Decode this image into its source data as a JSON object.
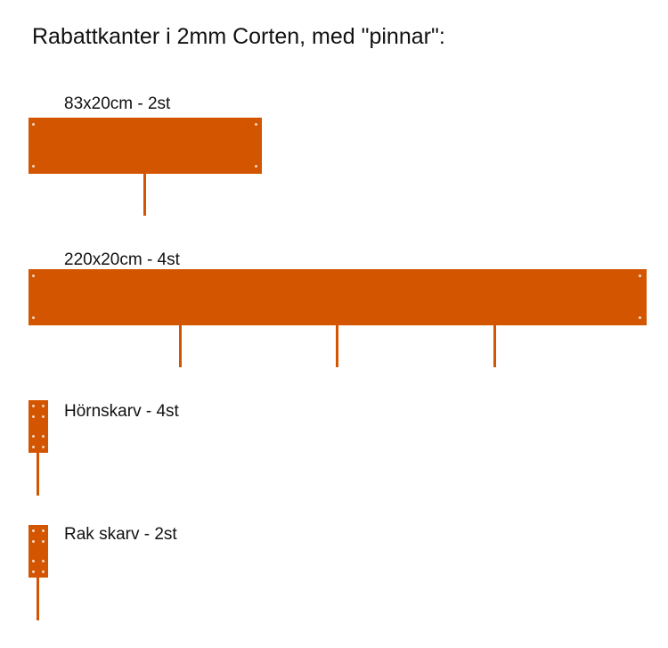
{
  "title": "Rabattkanter i 2mm Corten, med \"pinnar\":",
  "colors": {
    "corten": "#d45500",
    "hole": "#f3d8c4",
    "text": "#111111",
    "background": "#ffffff"
  },
  "parts": [
    {
      "id": "edge-83",
      "label": "83x20cm - 2st",
      "pins": 1
    },
    {
      "id": "edge-220",
      "label": "220x20cm - 4st",
      "pins": 3
    },
    {
      "id": "corner-joint",
      "label": "Hörnskarv - 4st",
      "pins": 1
    },
    {
      "id": "straight-joint",
      "label": "Rak skarv - 2st",
      "pins": 1
    }
  ]
}
